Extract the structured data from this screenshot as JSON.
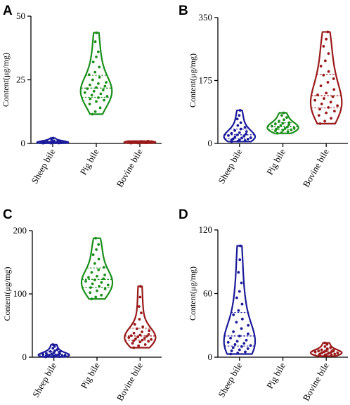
{
  "colors": {
    "sheep": "#1a1a9a",
    "pig": "#1a8f1a",
    "bovine": "#9a1a1a"
  },
  "chart_data": [
    {
      "panel": "A",
      "type": "violin",
      "ylabel": "Content(μg/mg)",
      "ylim": [
        0,
        50
      ],
      "yticks": [
        0,
        25,
        50
      ],
      "categories": [
        "Sheep bile",
        "Pig bile",
        "Bovine bile"
      ],
      "series": [
        {
          "category": "Sheep bile",
          "values": [
            0.1,
            0.1,
            0.15,
            0.2,
            0.2,
            0.25,
            0.3,
            0.3,
            0.35,
            0.4,
            0.4,
            0.45,
            0.5,
            0.5,
            0.55,
            0.6,
            0.7,
            0.8,
            1.0,
            1.2,
            1.5,
            2.1
          ]
        },
        {
          "category": "Pig bile",
          "values": [
            11.5,
            12.5,
            14,
            15.5,
            16.5,
            17,
            17.5,
            18,
            18.5,
            19,
            19.5,
            20,
            20.5,
            21,
            21.5,
            22,
            22.5,
            23,
            23.5,
            24,
            25,
            26,
            27,
            28,
            30,
            32,
            34,
            36,
            40,
            43.5
          ]
        },
        {
          "category": "Bovine bile",
          "values": [
            0.1,
            0.15,
            0.2,
            0.25,
            0.3,
            0.3,
            0.35,
            0.4,
            0.4,
            0.45,
            0.5,
            0.5,
            0.55,
            0.6,
            0.6,
            0.65,
            0.7,
            0.75,
            0.8,
            0.9
          ]
        }
      ]
    },
    {
      "panel": "B",
      "type": "violin",
      "ylabel": "Content(μg/mg)",
      "ylim": [
        0,
        350
      ],
      "yticks": [
        0,
        175,
        350
      ],
      "categories": [
        "Sheep bile",
        "Pig bile",
        "Bovine bile"
      ],
      "series": [
        {
          "category": "Sheep bile",
          "values": [
            5,
            6,
            8,
            10,
            10,
            12,
            13,
            15,
            16,
            18,
            20,
            22,
            24,
            26,
            28,
            30,
            33,
            36,
            40,
            45,
            50,
            58,
            68,
            78,
            92
          ]
        },
        {
          "category": "Pig bile",
          "values": [
            28,
            30,
            33,
            35,
            37,
            38,
            40,
            42,
            43,
            45,
            46,
            48,
            50,
            52,
            54,
            56,
            58,
            62,
            66,
            72,
            78,
            85
          ]
        },
        {
          "category": "Bovine bile",
          "values": [
            55,
            62,
            70,
            78,
            85,
            90,
            95,
            100,
            105,
            110,
            115,
            120,
            125,
            130,
            135,
            140,
            150,
            160,
            170,
            180,
            190,
            200,
            215,
            230,
            250,
            270,
            290,
            310
          ]
        }
      ]
    },
    {
      "panel": "C",
      "type": "violin",
      "ylabel": "Content(μg/mg)",
      "ylim": [
        0,
        200
      ],
      "yticks": [
        0,
        100,
        200
      ],
      "categories": [
        "Sheep bile",
        "Pig bile",
        "Bovine bile"
      ],
      "series": [
        {
          "category": "Sheep bile",
          "values": [
            0.5,
            1,
            1,
            1.5,
            2,
            2,
            2.5,
            3,
            3,
            3.5,
            4,
            4.5,
            5,
            5.5,
            6,
            7,
            8,
            9,
            10,
            12,
            14,
            17,
            20
          ]
        },
        {
          "category": "Pig bile",
          "values": [
            92,
            95,
            98,
            102,
            105,
            108,
            110,
            112,
            114,
            116,
            118,
            120,
            122,
            124,
            126,
            128,
            130,
            134,
            138,
            142,
            148,
            155,
            162,
            170,
            178,
            188
          ]
        },
        {
          "category": "Bovine bile",
          "values": [
            15,
            18,
            20,
            22,
            24,
            25,
            26,
            27,
            28,
            29,
            30,
            31,
            32,
            33,
            34,
            35,
            36,
            38,
            40,
            42,
            45,
            48,
            52,
            60,
            70,
            80,
            95,
            112
          ]
        }
      ]
    },
    {
      "panel": "D",
      "type": "violin",
      "ylabel": "Content(μg/mg)",
      "ylim": [
        0,
        120
      ],
      "yticks": [
        0,
        60,
        120
      ],
      "categories": [
        "Sheep bile",
        "Pig bile",
        "Bovine bile"
      ],
      "series": [
        {
          "category": "Sheep bile",
          "values": [
            3,
            4,
            5,
            6,
            7,
            8,
            9,
            10,
            11,
            12,
            13,
            14,
            15,
            16,
            18,
            20,
            22,
            24,
            27,
            30,
            33,
            36,
            40,
            44,
            50,
            56,
            62,
            70,
            80,
            92,
            105
          ]
        },
        {
          "category": "Pig bile",
          "values": []
        },
        {
          "category": "Bovine bile",
          "values": [
            1,
            1.5,
            2,
            2,
            2.5,
            3,
            3,
            3.5,
            4,
            4,
            4.5,
            5,
            5,
            5.5,
            6,
            6,
            6.5,
            7,
            8,
            9,
            10,
            12,
            13.5
          ]
        }
      ]
    }
  ]
}
